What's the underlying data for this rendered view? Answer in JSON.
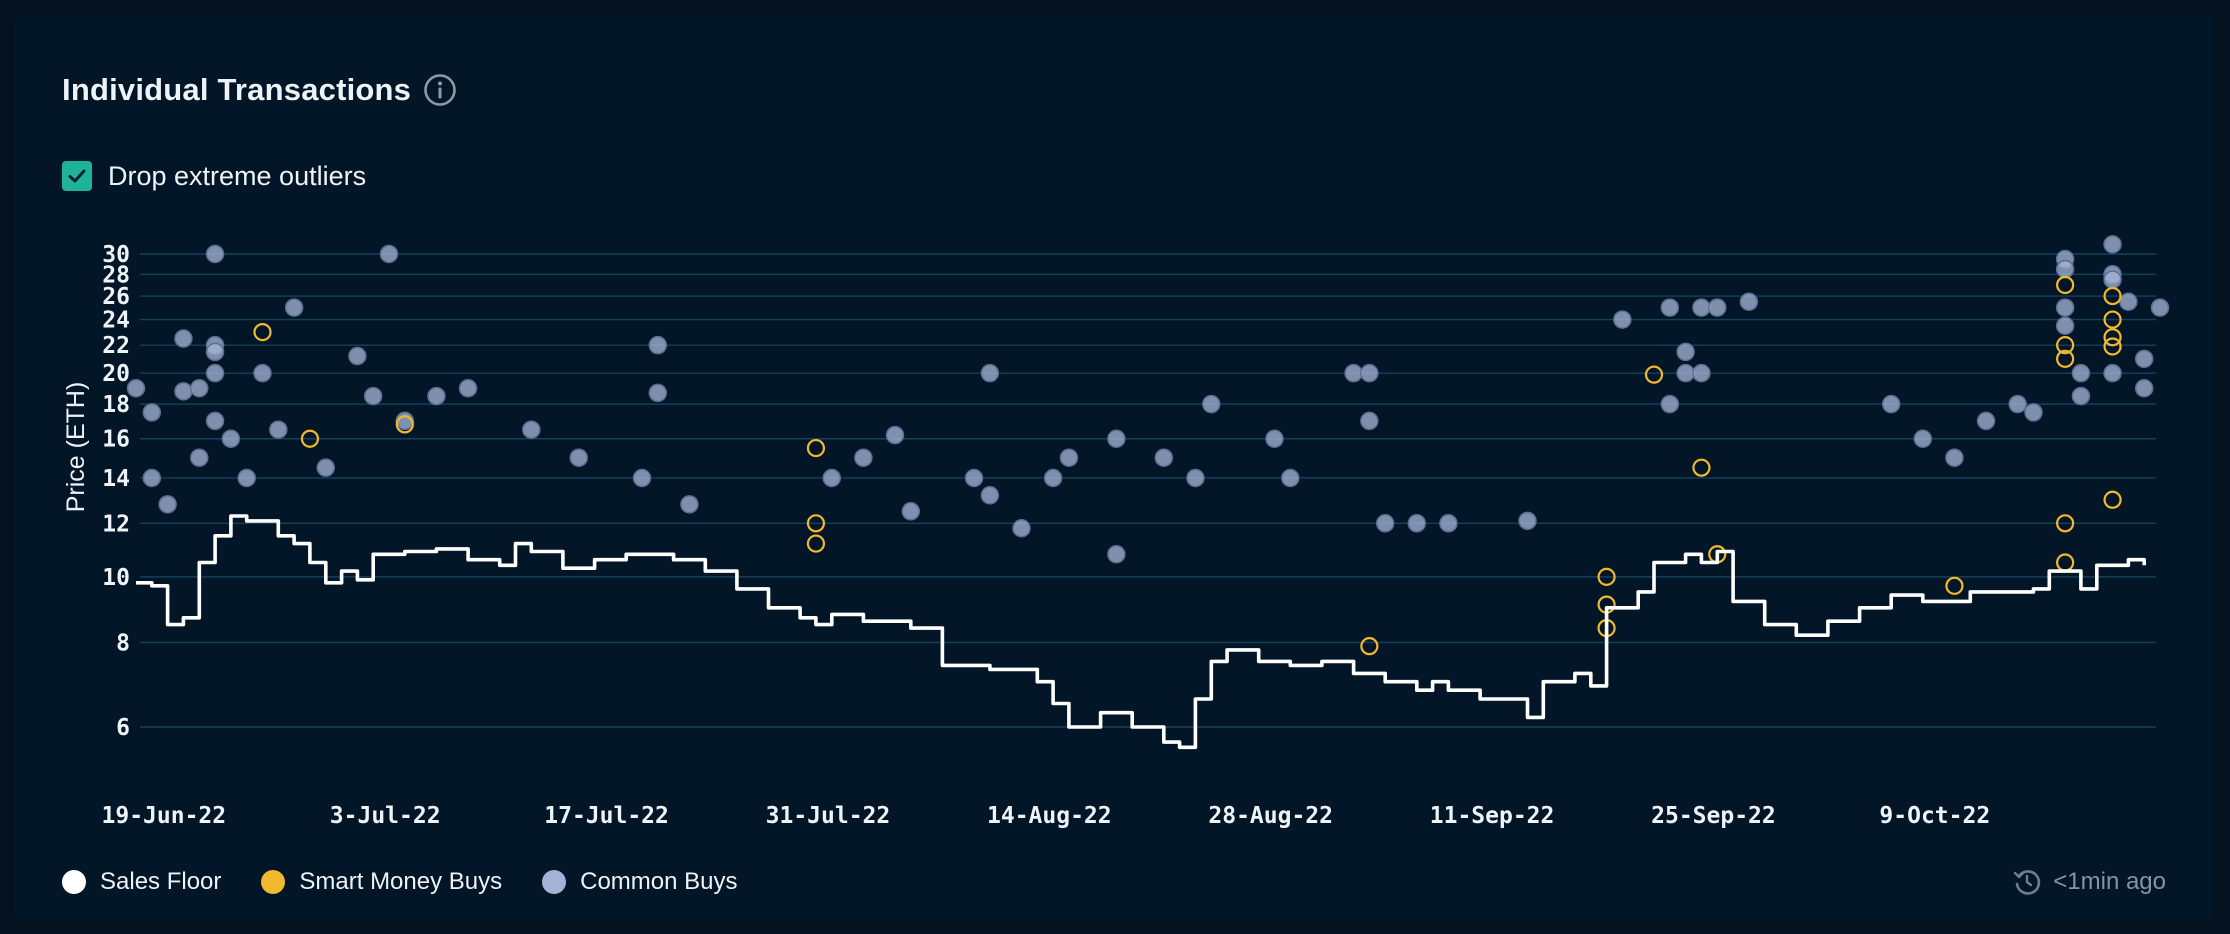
{
  "card": {
    "title": "Individual Transactions",
    "info_icon": "info-icon",
    "outlier_toggle": {
      "label": "Drop extreme outliers",
      "checked": true
    },
    "updated_icon": "history-icon",
    "updated_text": "<1min ago"
  },
  "colors": {
    "background": "#021627",
    "floor": "#ffffff",
    "smart": "#f2b92f",
    "common": "#a3b3d6",
    "grid": "#17405a",
    "checkbox": "#1fb39a"
  },
  "chart_data": {
    "type": "scatter",
    "ylabel": "Price (ETH)",
    "xlabel": "",
    "y_scale": "log",
    "ylim": [
      5.2,
      31
    ],
    "y_ticks": [
      6,
      8,
      10,
      12,
      14,
      16,
      18,
      20,
      22,
      24,
      26,
      28,
      30
    ],
    "x_range": [
      "2022-06-18",
      "2022-10-24"
    ],
    "x_ticks": [
      {
        "date": "2022-06-19",
        "label": "19-Jun-22"
      },
      {
        "date": "2022-07-03",
        "label": "3-Jul-22"
      },
      {
        "date": "2022-07-17",
        "label": "17-Jul-22"
      },
      {
        "date": "2022-07-31",
        "label": "31-Jul-22"
      },
      {
        "date": "2022-08-14",
        "label": "14-Aug-22"
      },
      {
        "date": "2022-08-28",
        "label": "28-Aug-22"
      },
      {
        "date": "2022-09-11",
        "label": "11-Sep-22"
      },
      {
        "date": "2022-09-25",
        "label": "25-Sep-22"
      },
      {
        "date": "2022-10-09",
        "label": "9-Oct-22"
      }
    ],
    "grid": true,
    "legend_position": "bottom-left",
    "series": [
      {
        "name": "Sales Floor",
        "kind": "line",
        "points": [
          [
            "2022-06-18",
            9.8
          ],
          [
            "2022-06-19",
            9.7
          ],
          [
            "2022-06-20",
            8.5
          ],
          [
            "2022-06-21",
            8.7
          ],
          [
            "2022-06-22",
            10.5
          ],
          [
            "2022-06-23",
            11.5
          ],
          [
            "2022-06-24",
            12.3
          ],
          [
            "2022-06-25",
            12.1
          ],
          [
            "2022-06-27",
            11.5
          ],
          [
            "2022-06-28",
            11.2
          ],
          [
            "2022-06-29",
            10.5
          ],
          [
            "2022-06-30",
            9.8
          ],
          [
            "2022-07-01",
            10.2
          ],
          [
            "2022-07-02",
            9.9
          ],
          [
            "2022-07-03",
            10.8
          ],
          [
            "2022-07-05",
            10.9
          ],
          [
            "2022-07-07",
            11.0
          ],
          [
            "2022-07-09",
            10.6
          ],
          [
            "2022-07-11",
            10.4
          ],
          [
            "2022-07-12",
            11.2
          ],
          [
            "2022-07-13",
            10.9
          ],
          [
            "2022-07-15",
            10.3
          ],
          [
            "2022-07-17",
            10.6
          ],
          [
            "2022-07-19",
            10.8
          ],
          [
            "2022-07-22",
            10.6
          ],
          [
            "2022-07-24",
            10.2
          ],
          [
            "2022-07-26",
            9.6
          ],
          [
            "2022-07-28",
            9.0
          ],
          [
            "2022-07-30",
            8.7
          ],
          [
            "2022-07-31",
            8.5
          ],
          [
            "2022-08-01",
            8.8
          ],
          [
            "2022-08-03",
            8.6
          ],
          [
            "2022-08-06",
            8.4
          ],
          [
            "2022-08-08",
            7.4
          ],
          [
            "2022-08-11",
            7.3
          ],
          [
            "2022-08-14",
            7.0
          ],
          [
            "2022-08-15",
            6.5
          ],
          [
            "2022-08-16",
            6.0
          ],
          [
            "2022-08-18",
            6.3
          ],
          [
            "2022-08-20",
            6.0
          ],
          [
            "2022-08-22",
            5.7
          ],
          [
            "2022-08-23",
            5.6
          ],
          [
            "2022-08-24",
            6.6
          ],
          [
            "2022-08-25",
            7.5
          ],
          [
            "2022-08-26",
            7.8
          ],
          [
            "2022-08-28",
            7.5
          ],
          [
            "2022-08-30",
            7.4
          ],
          [
            "2022-09-01",
            7.5
          ],
          [
            "2022-09-03",
            7.2
          ],
          [
            "2022-09-05",
            7.0
          ],
          [
            "2022-09-07",
            6.8
          ],
          [
            "2022-09-08",
            7.0
          ],
          [
            "2022-09-09",
            6.8
          ],
          [
            "2022-09-11",
            6.6
          ],
          [
            "2022-09-13",
            6.6
          ],
          [
            "2022-09-14",
            6.2
          ],
          [
            "2022-09-15",
            7.0
          ],
          [
            "2022-09-17",
            7.2
          ],
          [
            "2022-09-18",
            6.9
          ],
          [
            "2022-09-19",
            9.0
          ],
          [
            "2022-09-21",
            9.5
          ],
          [
            "2022-09-22",
            10.5
          ],
          [
            "2022-09-24",
            10.8
          ],
          [
            "2022-09-25",
            10.5
          ],
          [
            "2022-09-26",
            10.9
          ],
          [
            "2022-09-27",
            9.2
          ],
          [
            "2022-09-29",
            8.5
          ],
          [
            "2022-10-01",
            8.2
          ],
          [
            "2022-10-03",
            8.6
          ],
          [
            "2022-10-05",
            9.0
          ],
          [
            "2022-10-07",
            9.4
          ],
          [
            "2022-10-09",
            9.2
          ],
          [
            "2022-10-12",
            9.5
          ],
          [
            "2022-10-16",
            9.6
          ],
          [
            "2022-10-17",
            10.2
          ],
          [
            "2022-10-19",
            9.6
          ],
          [
            "2022-10-20",
            10.4
          ],
          [
            "2022-10-22",
            10.6
          ],
          [
            "2022-10-23",
            10.4
          ]
        ]
      },
      {
        "name": "Smart Money Buys",
        "kind": "scatter",
        "points": [
          [
            "2022-06-26",
            23.0
          ],
          [
            "2022-06-29",
            16.0
          ],
          [
            "2022-07-05",
            16.8
          ],
          [
            "2022-07-31",
            15.5
          ],
          [
            "2022-07-31",
            12.0
          ],
          [
            "2022-07-31",
            11.2
          ],
          [
            "2022-09-04",
            7.9
          ],
          [
            "2022-09-19",
            10.0
          ],
          [
            "2022-09-19",
            9.1
          ],
          [
            "2022-09-19",
            8.4
          ],
          [
            "2022-09-22",
            19.9
          ],
          [
            "2022-09-25",
            14.5
          ],
          [
            "2022-09-26",
            10.8
          ],
          [
            "2022-10-11",
            9.7
          ],
          [
            "2022-10-18",
            27.0
          ],
          [
            "2022-10-18",
            22.0
          ],
          [
            "2022-10-18",
            21.0
          ],
          [
            "2022-10-18",
            12.0
          ],
          [
            "2022-10-18",
            10.5
          ],
          [
            "2022-10-21",
            26.0
          ],
          [
            "2022-10-21",
            24.0
          ],
          [
            "2022-10-21",
            22.6
          ],
          [
            "2022-10-21",
            21.9
          ],
          [
            "2022-10-21",
            13.0
          ]
        ]
      },
      {
        "name": "Common Buys",
        "kind": "scatter",
        "points": [
          [
            "2022-06-18",
            19.0
          ],
          [
            "2022-06-19",
            17.5
          ],
          [
            "2022-06-19",
            14.0
          ],
          [
            "2022-06-20",
            12.8
          ],
          [
            "2022-06-21",
            22.5
          ],
          [
            "2022-06-21",
            18.8
          ],
          [
            "2022-06-22",
            19.0
          ],
          [
            "2022-06-22",
            15.0
          ],
          [
            "2022-06-23",
            30.0
          ],
          [
            "2022-06-23",
            22.0
          ],
          [
            "2022-06-23",
            21.5
          ],
          [
            "2022-06-23",
            20.0
          ],
          [
            "2022-06-23",
            17.0
          ],
          [
            "2022-06-24",
            16.0
          ],
          [
            "2022-06-25",
            14.0
          ],
          [
            "2022-06-26",
            20.0
          ],
          [
            "2022-06-27",
            16.5
          ],
          [
            "2022-06-28",
            25.0
          ],
          [
            "2022-06-30",
            14.5
          ],
          [
            "2022-07-02",
            21.2
          ],
          [
            "2022-07-03",
            18.5
          ],
          [
            "2022-07-04",
            30.0
          ],
          [
            "2022-07-05",
            17.0
          ],
          [
            "2022-07-07",
            18.5
          ],
          [
            "2022-07-09",
            19.0
          ],
          [
            "2022-07-13",
            16.5
          ],
          [
            "2022-07-16",
            15.0
          ],
          [
            "2022-07-20",
            14.0
          ],
          [
            "2022-07-21",
            18.7
          ],
          [
            "2022-07-21",
            22.0
          ],
          [
            "2022-07-23",
            12.8
          ],
          [
            "2022-08-01",
            14.0
          ],
          [
            "2022-08-03",
            15.0
          ],
          [
            "2022-08-05",
            16.2
          ],
          [
            "2022-08-06",
            12.5
          ],
          [
            "2022-08-10",
            14.0
          ],
          [
            "2022-08-11",
            20.0
          ],
          [
            "2022-08-11",
            13.2
          ],
          [
            "2022-08-13",
            11.8
          ],
          [
            "2022-08-15",
            14.0
          ],
          [
            "2022-08-16",
            15.0
          ],
          [
            "2022-08-19",
            16.0
          ],
          [
            "2022-08-19",
            10.8
          ],
          [
            "2022-08-22",
            15.0
          ],
          [
            "2022-08-24",
            14.0
          ],
          [
            "2022-08-25",
            18.0
          ],
          [
            "2022-08-29",
            16.0
          ],
          [
            "2022-08-30",
            14.0
          ],
          [
            "2022-09-03",
            20.0
          ],
          [
            "2022-09-04",
            20.0
          ],
          [
            "2022-09-04",
            17.0
          ],
          [
            "2022-09-05",
            12.0
          ],
          [
            "2022-09-07",
            12.0
          ],
          [
            "2022-09-09",
            12.0
          ],
          [
            "2022-09-14",
            12.1
          ],
          [
            "2022-09-20",
            24.0
          ],
          [
            "2022-09-23",
            25.0
          ],
          [
            "2022-09-23",
            18.0
          ],
          [
            "2022-09-24",
            21.5
          ],
          [
            "2022-09-24",
            20.0
          ],
          [
            "2022-09-25",
            20.0
          ],
          [
            "2022-09-25",
            25.0
          ],
          [
            "2022-09-26",
            25.0
          ],
          [
            "2022-09-28",
            25.5
          ],
          [
            "2022-10-07",
            18.0
          ],
          [
            "2022-10-09",
            16.0
          ],
          [
            "2022-10-11",
            15.0
          ],
          [
            "2022-10-13",
            17.0
          ],
          [
            "2022-10-15",
            18.0
          ],
          [
            "2022-10-16",
            17.5
          ],
          [
            "2022-10-18",
            29.5
          ],
          [
            "2022-10-18",
            28.5
          ],
          [
            "2022-10-18",
            25.0
          ],
          [
            "2022-10-18",
            23.5
          ],
          [
            "2022-10-19",
            20.0
          ],
          [
            "2022-10-19",
            18.5
          ],
          [
            "2022-10-21",
            31.0
          ],
          [
            "2022-10-21",
            28.0
          ],
          [
            "2022-10-21",
            27.5
          ],
          [
            "2022-10-21",
            20.0
          ],
          [
            "2022-10-22",
            25.5
          ],
          [
            "2022-10-23",
            21.0
          ],
          [
            "2022-10-23",
            19.0
          ],
          [
            "2022-10-24",
            25.0
          ]
        ]
      }
    ]
  }
}
